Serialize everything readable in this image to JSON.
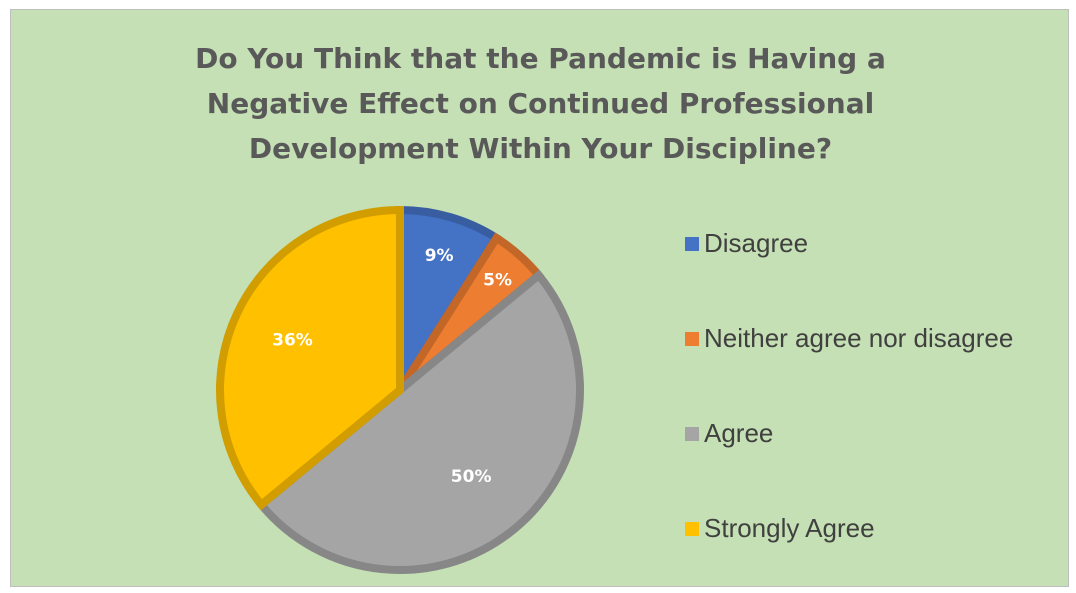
{
  "chart_data": {
    "type": "pie",
    "title": "Do You Think that the Pandemic is Having a Negative Effect on Continued Professional Development Within Your Discipline?",
    "title_lines": [
      "Do You Think that the Pandemic is Having a",
      "Negative Effect on Continued Professional",
      "Development Within Your Discipline?"
    ],
    "categories": [
      "Disagree",
      "Neither agree nor disagree",
      "Agree",
      "Strongly Agree"
    ],
    "values": [
      9,
      5,
      50,
      36
    ],
    "data_labels": [
      "9%",
      "5%",
      "50%",
      "36%"
    ],
    "colors": [
      "#4472c4",
      "#ed7d31",
      "#a5a5a5",
      "#ffc000"
    ],
    "legend_position": "right",
    "background_color": "#c5e0b4"
  }
}
